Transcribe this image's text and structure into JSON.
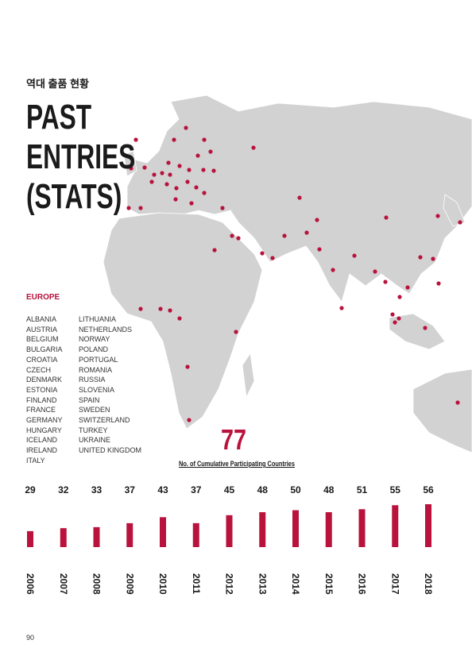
{
  "header": {
    "subtitle": "역대 출품 현황",
    "title_lines": [
      "PAST",
      "ENTRIES",
      "(STATS)"
    ]
  },
  "europe": {
    "heading": "EUROPE",
    "countries": [
      "ALBANIA",
      "AUSTRIA",
      "BELGIUM",
      "BULGARIA",
      "CROATIA",
      "CZECH",
      "DENMARK",
      "ESTONIA",
      "FINLAND",
      "FRANCE",
      "GERMANY",
      "HUNGARY",
      "ICELAND",
      "IRELAND",
      "ITALY",
      "LITHUANIA",
      "NETHERLANDS",
      "NORWAY",
      "POLAND",
      "PORTUGAL",
      "ROMANIA",
      "RUSSIA",
      "SLOVENIA",
      "SPAIN",
      "SWEDEN",
      "SWITZERLAND",
      "TURKEY",
      "UKRAINE",
      "UNITED KINGDOM"
    ]
  },
  "total": {
    "value": 77,
    "label": "No. of Cumulative Participating Countries"
  },
  "chart_data": {
    "type": "bar",
    "categories": [
      "2006",
      "2007",
      "2008",
      "2009",
      "2010",
      "2011",
      "2012",
      "2013",
      "2014",
      "2015",
      "2016",
      "2017",
      "2018"
    ],
    "values": [
      29,
      32,
      33,
      37,
      43,
      37,
      45,
      48,
      50,
      48,
      51,
      55,
      56
    ],
    "color": "#b8123d",
    "ylim": [
      13,
      56
    ]
  },
  "page_number": "90"
}
